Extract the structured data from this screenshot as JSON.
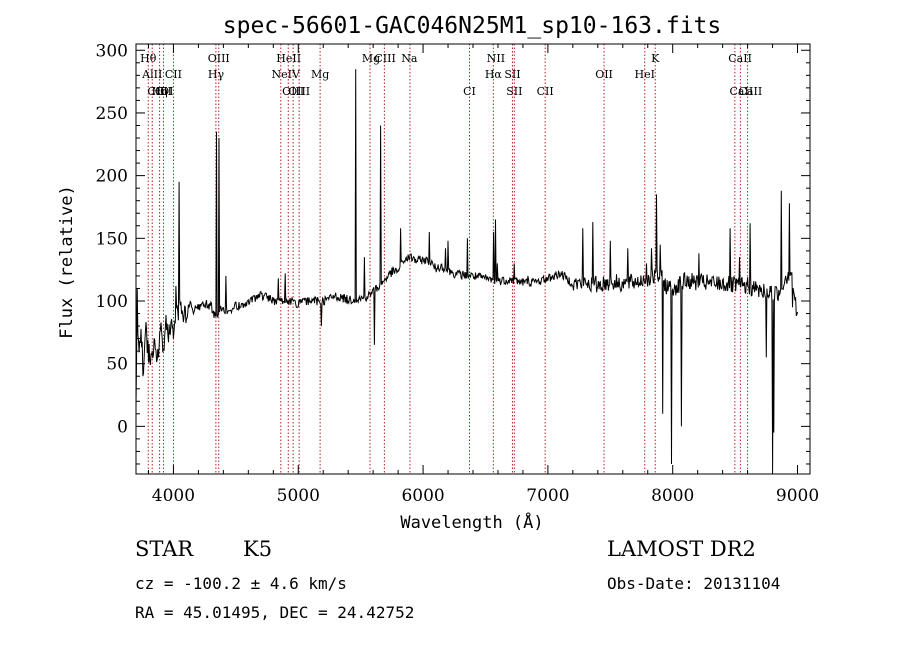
{
  "chart_data": {
    "type": "line",
    "title": "spec-56601-GAC046N25M1_sp10-163.fits",
    "xlabel": "Wavelength (Å)",
    "ylabel": "Flux (relative)",
    "xlim": [
      3700,
      9100
    ],
    "ylim": [
      -38,
      305
    ],
    "xticks": [
      4000,
      5000,
      6000,
      7000,
      8000,
      9000
    ],
    "yticks": [
      0,
      50,
      100,
      150,
      200,
      250,
      300
    ],
    "grid": false,
    "line_color": "#000000",
    "marker_color": "#b22222",
    "spectral_lines": [
      {
        "label": "Hθ",
        "wavelength": 3798,
        "row": 0
      },
      {
        "label": "AlII",
        "wavelength": 3830,
        "row": 1
      },
      {
        "label": "CII",
        "wavelength": 3860,
        "row": 2
      },
      {
        "label": "Hη",
        "wavelength": 3889,
        "row": 2
      },
      {
        "label": "CII",
        "wavelength": 3920,
        "row": 2
      },
      {
        "label": "CII",
        "wavelength": 4000,
        "row": 1
      },
      {
        "label": "OI",
        "wavelength": 3947,
        "row": 2
      },
      {
        "label": "OIII",
        "wavelength": 4363,
        "row": 0
      },
      {
        "label": "Hγ",
        "wavelength": 4341,
        "row": 1
      },
      {
        "label": "HeII",
        "wavelength": 4923,
        "row": 0
      },
      {
        "label": "NeIV",
        "wavelength": 4900,
        "row": 1
      },
      {
        "label": "OIII",
        "wavelength": 4959,
        "row": 2
      },
      {
        "label": "OIII",
        "wavelength": 5007,
        "row": 2
      },
      {
        "label": "Mg",
        "wavelength": 5175,
        "row": 1
      },
      {
        "label": "Mg",
        "wavelength": 5583,
        "row": 0
      },
      {
        "label": "CIII",
        "wavelength": 5696,
        "row": 0
      },
      {
        "label": "Na",
        "wavelength": 5890,
        "row": 0
      },
      {
        "label": "CI",
        "wavelength": 6372,
        "row": 2
      },
      {
        "label": "NII",
        "wavelength": 6584,
        "row": 0
      },
      {
        "label": "Hα",
        "wavelength": 6563,
        "row": 1
      },
      {
        "label": "SII",
        "wavelength": 6716,
        "row": 1
      },
      {
        "label": "SII",
        "wavelength": 6731,
        "row": 2
      },
      {
        "label": "CII",
        "wavelength": 6978,
        "row": 2
      },
      {
        "label": "OII",
        "wavelength": 7450,
        "row": 1
      },
      {
        "label": "HeI",
        "wavelength": 7776,
        "row": 1
      },
      {
        "label": "K",
        "wavelength": 7860,
        "row": 0
      },
      {
        "label": "CaII",
        "wavelength": 8540,
        "row": 0
      },
      {
        "label": "CaII",
        "wavelength": 8550,
        "row": 2
      },
      {
        "label": "CaII",
        "wavelength": 8622,
        "row": 2
      }
    ],
    "marker_wavelengths": [
      3798,
      3830,
      3889,
      3920,
      4000,
      4340,
      4363,
      4860,
      4920,
      4959,
      5007,
      5175,
      5575,
      5690,
      5895,
      6372,
      6563,
      6716,
      6731,
      6978,
      7450,
      7776,
      7860,
      8498,
      8542,
      8600
    ],
    "anchors": [
      [
        3700,
        20
      ],
      [
        3710,
        95
      ],
      [
        3725,
        55
      ],
      [
        3740,
        70
      ],
      [
        3760,
        50
      ],
      [
        3780,
        75
      ],
      [
        3800,
        60
      ],
      [
        3820,
        55
      ],
      [
        3845,
        68
      ],
      [
        3870,
        52
      ],
      [
        3900,
        78
      ],
      [
        3920,
        60
      ],
      [
        3940,
        85
      ],
      [
        3960,
        70
      ],
      [
        3980,
        80
      ],
      [
        4000,
        75
      ],
      [
        4020,
        88
      ],
      [
        4050,
        95
      ],
      [
        4080,
        90
      ],
      [
        4100,
        85
      ],
      [
        4130,
        100
      ],
      [
        4160,
        92
      ],
      [
        4200,
        95
      ],
      [
        4250,
        98
      ],
      [
        4300,
        96
      ],
      [
        4340,
        86
      ],
      [
        4380,
        95
      ],
      [
        4420,
        92
      ],
      [
        4500,
        96
      ],
      [
        4600,
        98
      ],
      [
        4700,
        105
      ],
      [
        4800,
        100
      ],
      [
        4900,
        100
      ],
      [
        5000,
        98
      ],
      [
        5100,
        100
      ],
      [
        5200,
        100
      ],
      [
        5300,
        104
      ],
      [
        5400,
        101
      ],
      [
        5500,
        102
      ],
      [
        5550,
        103
      ],
      [
        5600,
        108
      ],
      [
        5650,
        112
      ],
      [
        5700,
        118
      ],
      [
        5750,
        123
      ],
      [
        5800,
        124
      ],
      [
        5850,
        133
      ],
      [
        5900,
        135
      ],
      [
        5950,
        132
      ],
      [
        6000,
        133
      ],
      [
        6050,
        132
      ],
      [
        6100,
        126
      ],
      [
        6150,
        128
      ],
      [
        6200,
        124
      ],
      [
        6250,
        122
      ],
      [
        6300,
        121
      ],
      [
        6400,
        120
      ],
      [
        6500,
        118
      ],
      [
        6600,
        116
      ],
      [
        6700,
        117
      ],
      [
        6800,
        115
      ],
      [
        6900,
        115
      ],
      [
        7000,
        118
      ],
      [
        7100,
        122
      ],
      [
        7200,
        114
      ],
      [
        7300,
        114
      ],
      [
        7400,
        113
      ],
      [
        7500,
        115
      ],
      [
        7600,
        114
      ],
      [
        7700,
        115
      ],
      [
        7800,
        118
      ],
      [
        7900,
        120
      ],
      [
        7950,
        112
      ],
      [
        8000,
        110
      ],
      [
        8100,
        116
      ],
      [
        8200,
        115
      ],
      [
        8300,
        114
      ],
      [
        8400,
        114
      ],
      [
        8500,
        112
      ],
      [
        8600,
        112
      ],
      [
        8700,
        108
      ],
      [
        8800,
        106
      ],
      [
        8850,
        106
      ],
      [
        8900,
        118
      ],
      [
        8950,
        125
      ],
      [
        9000,
        85
      ]
    ],
    "spikes": [
      [
        3712,
        110
      ],
      [
        3755,
        40
      ],
      [
        4022,
        112
      ],
      [
        4045,
        195
      ],
      [
        4343,
        235
      ],
      [
        4365,
        230
      ],
      [
        4420,
        120
      ],
      [
        4840,
        118
      ],
      [
        4895,
        122
      ],
      [
        5183,
        80
      ],
      [
        5460,
        285
      ],
      [
        5530,
        135
      ],
      [
        5612,
        65
      ],
      [
        5660,
        240
      ],
      [
        5818,
        158
      ],
      [
        6050,
        155
      ],
      [
        6180,
        142
      ],
      [
        6200,
        148
      ],
      [
        6222,
        125
      ],
      [
        6355,
        150
      ],
      [
        6565,
        155
      ],
      [
        6580,
        165
      ],
      [
        6595,
        130
      ],
      [
        6730,
        130
      ],
      [
        6840,
        120
      ],
      [
        7280,
        158
      ],
      [
        7360,
        163
      ],
      [
        7500,
        148
      ],
      [
        7640,
        142
      ],
      [
        7790,
        130
      ],
      [
        7830,
        142
      ],
      [
        7870,
        185
      ],
      [
        7900,
        145
      ],
      [
        7920,
        10
      ],
      [
        7990,
        -30
      ],
      [
        8070,
        0
      ],
      [
        8210,
        138
      ],
      [
        8460,
        158
      ],
      [
        8535,
        135
      ],
      [
        8620,
        162
      ],
      [
        8750,
        55
      ],
      [
        8800,
        -35
      ],
      [
        8808,
        -5
      ],
      [
        8870,
        188
      ],
      [
        8935,
        178
      ],
      [
        8960,
        95
      ]
    ]
  },
  "info": {
    "object_class": "STAR",
    "spectral_type": "K5",
    "survey": "LAMOST DR2",
    "redshift": "cz = -100.2 ± 4.6 km/s",
    "obs_date": "Obs-Date: 20131104",
    "coordinates": "RA =  45.01495, DEC =  24.42752"
  }
}
